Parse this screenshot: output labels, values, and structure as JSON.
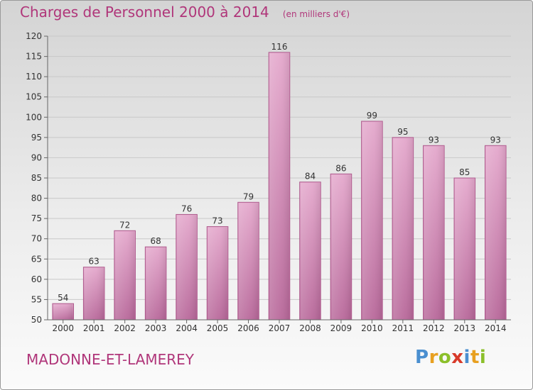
{
  "chart_data": {
    "type": "bar",
    "title": "Charges de Personnel 2000 à 2014",
    "subtitle": "(en milliers d'€)",
    "categories": [
      "2000",
      "2001",
      "2002",
      "2003",
      "2004",
      "2005",
      "2006",
      "2007",
      "2008",
      "2009",
      "2010",
      "2011",
      "2012",
      "2013",
      "2014"
    ],
    "values": [
      54,
      63,
      72,
      68,
      76,
      73,
      79,
      116,
      84,
      86,
      99,
      95,
      93,
      85,
      93
    ],
    "ylim": [
      50,
      120
    ],
    "yticks": [
      50,
      55,
      60,
      65,
      70,
      75,
      80,
      85,
      90,
      95,
      100,
      105,
      110,
      115,
      120
    ],
    "grid": true,
    "bar_color": "#d88ab8",
    "data_labels": true
  },
  "footer": {
    "commune": "MADONNE-ET-LAMEREY"
  },
  "logo": {
    "letters": [
      {
        "ch": "P",
        "color": "#4a8fd0"
      },
      {
        "ch": "r",
        "color": "#e8a020"
      },
      {
        "ch": "o",
        "color": "#8bbf2a"
      },
      {
        "ch": "x",
        "color": "#d83a2a"
      },
      {
        "ch": "i",
        "color": "#4a8fd0"
      },
      {
        "ch": "t",
        "color": "#e8a020"
      },
      {
        "ch": "i",
        "color": "#8bbf2a"
      }
    ]
  }
}
